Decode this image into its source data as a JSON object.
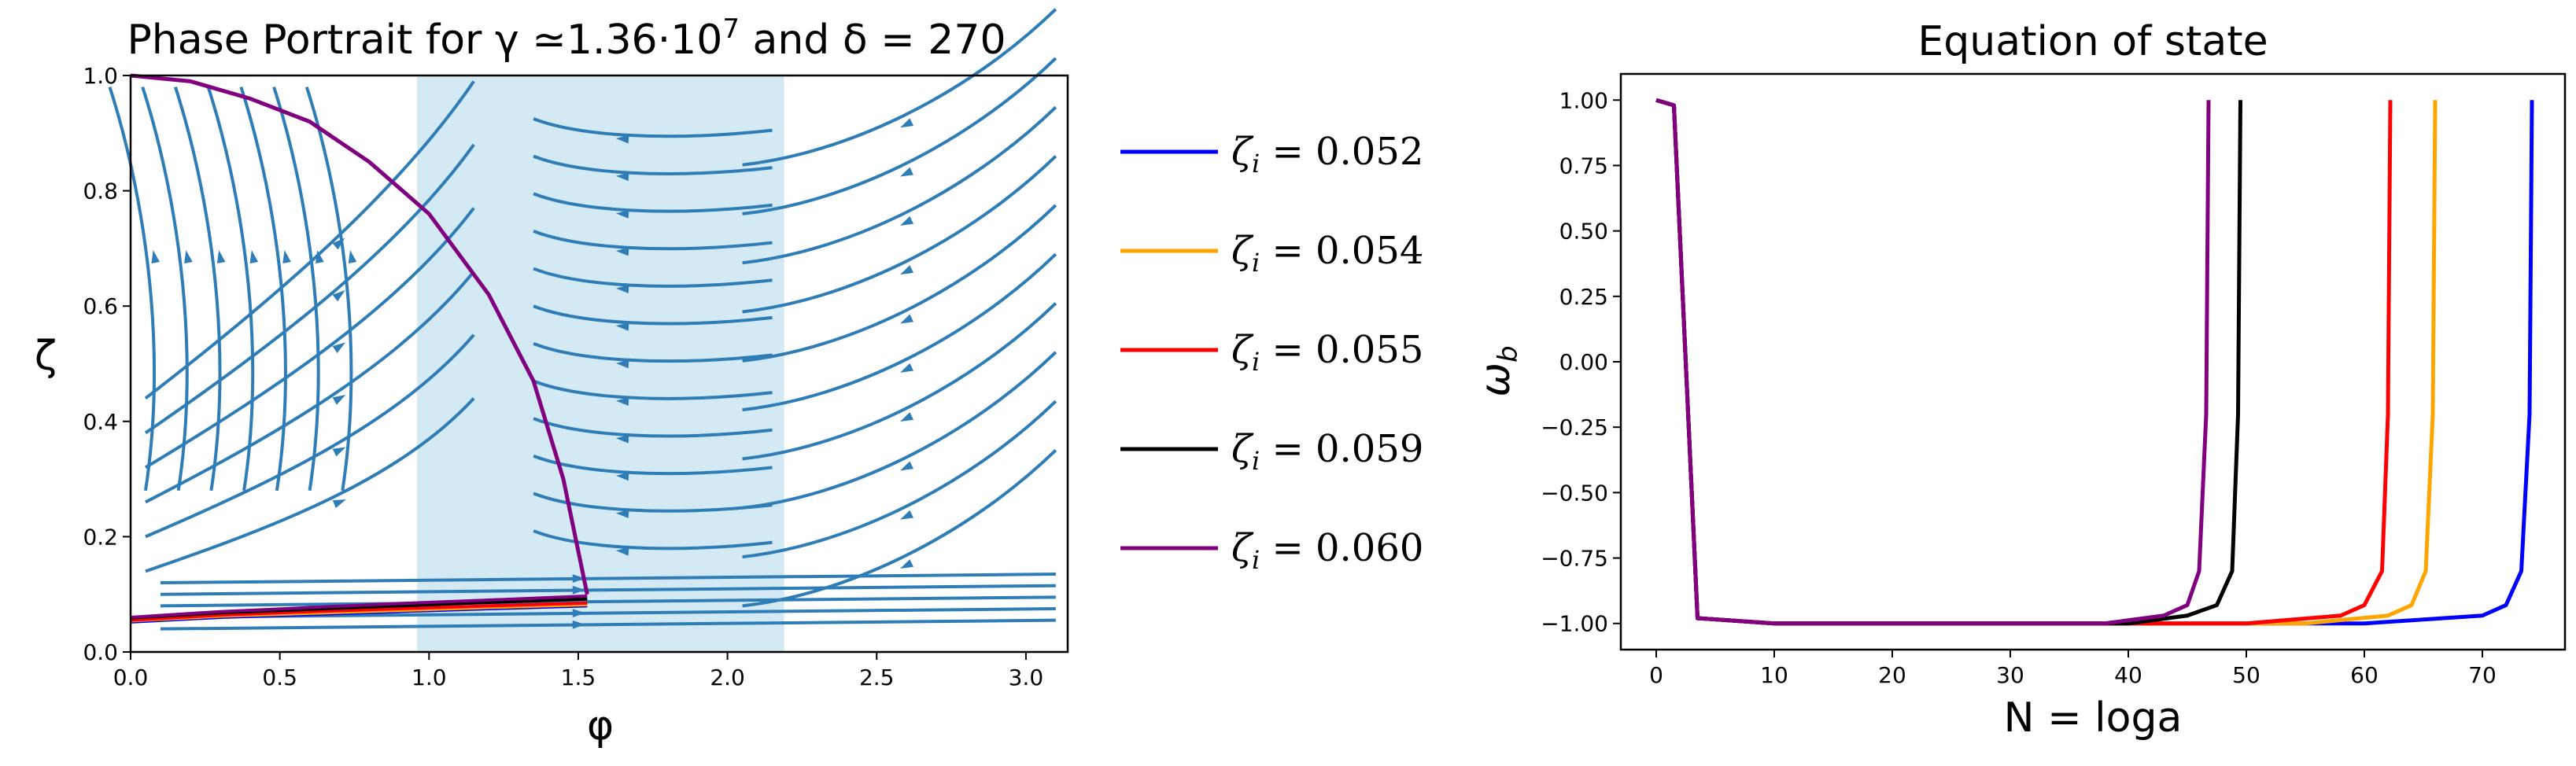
{
  "chart_data": [
    {
      "type": "line",
      "title": "Phase Portrait for γ  ≃1.36·10^7 and δ = 270",
      "title_parts": {
        "prefix": "Phase Portrait for γ  ≃1.36·10",
        "exp": "7",
        "suffix": " and δ = 270"
      },
      "xlabel": "φ",
      "ylabel": "ζ",
      "xlim": [
        0,
        3.14
      ],
      "ylim": [
        0,
        1.0
      ],
      "xticks": [
        "0.0",
        "0.5",
        "1.0",
        "1.5",
        "2.0",
        "2.5",
        "3.0"
      ],
      "yticks": [
        "0.0",
        "0.2",
        "0.4",
        "0.6",
        "0.8",
        "1.0"
      ],
      "shaded_region": {
        "x": [
          0.96,
          2.19
        ],
        "color": "#d3e9f4"
      },
      "stream_color": "#2f7db6",
      "series": [
        {
          "name": "ζ_i = 0.052",
          "color": "#0000ff",
          "x": [
            0,
            0.3,
            0.6,
            0.9,
            1.2,
            1.53
          ],
          "y": [
            0.052,
            0.06,
            0.065,
            0.07,
            0.075,
            0.08
          ]
        },
        {
          "name": "ζ_i = 0.054",
          "color": "#ffa500",
          "x": [
            0,
            0.3,
            0.6,
            0.9,
            1.2,
            1.53
          ],
          "y": [
            0.054,
            0.062,
            0.067,
            0.072,
            0.077,
            0.082
          ]
        },
        {
          "name": "ζ_i = 0.055",
          "color": "#ff0000",
          "x": [
            0,
            0.3,
            0.6,
            0.9,
            1.2,
            1.53
          ],
          "y": [
            0.055,
            0.064,
            0.07,
            0.075,
            0.08,
            0.085
          ]
        },
        {
          "name": "ζ_i = 0.059",
          "color": "#000000",
          "x": [
            0,
            0.3,
            0.6,
            0.9,
            1.2,
            1.53
          ],
          "y": [
            0.059,
            0.068,
            0.074,
            0.08,
            0.086,
            0.092
          ]
        },
        {
          "name": "ζ_i = 0.060",
          "color": "#800080",
          "x": [
            0,
            0.3,
            0.6,
            0.9,
            1.2,
            1.53
          ],
          "y": [
            0.06,
            0.07,
            0.077,
            0.084,
            0.09,
            0.097
          ]
        }
      ],
      "separatrix": {
        "color": "#800080",
        "x": [
          0.0,
          0.2,
          0.4,
          0.6,
          0.8,
          1.0,
          1.2,
          1.35,
          1.45,
          1.53
        ],
        "y": [
          1.0,
          0.99,
          0.96,
          0.92,
          0.85,
          0.76,
          0.62,
          0.47,
          0.3,
          0.1
        ]
      }
    },
    {
      "type": "line",
      "title": "Equation of state",
      "xlabel": "N = loga",
      "ylabel": "ω_b",
      "xlim": [
        -3,
        77
      ],
      "ylim": [
        -1.1,
        1.1
      ],
      "xticks": [
        "0",
        "10",
        "20",
        "30",
        "40",
        "50",
        "60",
        "70"
      ],
      "yticks": [
        "1.00",
        "0.75",
        "0.50",
        "0.25",
        "0.00",
        "−0.25",
        "−0.50",
        "−0.75",
        "−1.00"
      ],
      "series": [
        {
          "name": "ζ_i = 0.052",
          "color": "#0000ff",
          "x": [
            0,
            1.5,
            2.5,
            3.5,
            10,
            60,
            70,
            72,
            73.3,
            74,
            74.2
          ],
          "y": [
            1,
            0.98,
            0.0,
            -0.98,
            -1,
            -1,
            -0.97,
            -0.93,
            -0.8,
            -0.2,
            1
          ]
        },
        {
          "name": "ζ_i = 0.054",
          "color": "#ffa500",
          "x": [
            0,
            1.5,
            2.5,
            3.5,
            10,
            55,
            62,
            64,
            65.2,
            65.8,
            66
          ],
          "y": [
            1,
            0.98,
            0.0,
            -0.98,
            -1,
            -1,
            -0.97,
            -0.93,
            -0.8,
            -0.2,
            1
          ]
        },
        {
          "name": "ζ_i = 0.055",
          "color": "#ff0000",
          "x": [
            0,
            1.5,
            2.5,
            3.5,
            10,
            50,
            58,
            60,
            61.5,
            62,
            62.2
          ],
          "y": [
            1,
            0.98,
            0.0,
            -0.98,
            -1,
            -1,
            -0.97,
            -0.93,
            -0.8,
            -0.2,
            1
          ]
        },
        {
          "name": "ζ_i = 0.059",
          "color": "#000000",
          "x": [
            0,
            1.5,
            2.5,
            3.5,
            10,
            40,
            45,
            47.5,
            48.8,
            49.3,
            49.5
          ],
          "y": [
            1,
            0.98,
            0.0,
            -0.98,
            -1,
            -1,
            -0.97,
            -0.93,
            -0.8,
            -0.2,
            1
          ]
        },
        {
          "name": "ζ_i = 0.060",
          "color": "#800080",
          "x": [
            0,
            1.5,
            2.5,
            3.5,
            10,
            38,
            43,
            45,
            46,
            46.6,
            46.8
          ],
          "y": [
            1,
            0.98,
            0.0,
            -0.98,
            -1,
            -1,
            -0.97,
            -0.93,
            -0.8,
            -0.2,
            1
          ]
        }
      ]
    }
  ],
  "legend": {
    "items": [
      {
        "sym": "ζ",
        "sub": "i",
        "value": " = 0.052",
        "color": "#0000ff"
      },
      {
        "sym": "ζ",
        "sub": "i",
        "value": " = 0.054",
        "color": "#ffa500"
      },
      {
        "sym": "ζ",
        "sub": "i",
        "value": " = 0.055",
        "color": "#ff0000"
      },
      {
        "sym": "ζ",
        "sub": "i",
        "value": " = 0.059",
        "color": "#000000"
      },
      {
        "sym": "ζ",
        "sub": "i",
        "value": " = 0.060",
        "color": "#800080"
      }
    ]
  }
}
